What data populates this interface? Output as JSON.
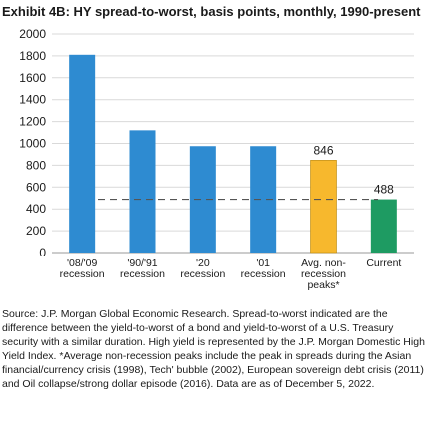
{
  "title": "Exhibit 4B: HY spread-to-worst, basis points, monthly, 1990-present",
  "chart_data": {
    "type": "bar",
    "categories": [
      [
        "'08/'09",
        "recession"
      ],
      [
        "'90/'91",
        "recession"
      ],
      [
        "'20",
        "recession"
      ],
      [
        "'01",
        "recession"
      ],
      [
        "Avg. non-",
        "recession",
        "peaks*"
      ],
      [
        "Current"
      ]
    ],
    "values": [
      1810,
      1120,
      975,
      975,
      846,
      488
    ],
    "data_labels": [
      "",
      "",
      "",
      "",
      "846",
      "488"
    ],
    "colors": [
      "#2e8bd1",
      "#2e8bd1",
      "#2e8bd1",
      "#2e8bd1",
      "#f7b82d",
      "#1e9b62"
    ],
    "reference_line": {
      "value": 488,
      "style": "dashed",
      "color": "#555555"
    },
    "ylim": [
      0,
      2000
    ],
    "yticks": [
      0,
      200,
      400,
      600,
      800,
      1000,
      1200,
      1400,
      1600,
      1800,
      2000
    ],
    "grid": true,
    "xlabel": "",
    "ylabel": ""
  },
  "source": "Source: J.P. Morgan Global Economic Research. Spread-to-worst indicated are the difference between the yield-to-worst of a bond and yield-to-worst of a U.S. Treasury security with a similar duration. High yield is represented by the J.P. Morgan Domestic High Yield Index. *Average non-recession peaks include the peak in spreads during the Asian financial/currency crisis (1998), Tech' bubble (2002), European sovereign debt crisis (2011) and Oil collapse/strong dollar episode (2016). Data are as of December 5, 2022."
}
